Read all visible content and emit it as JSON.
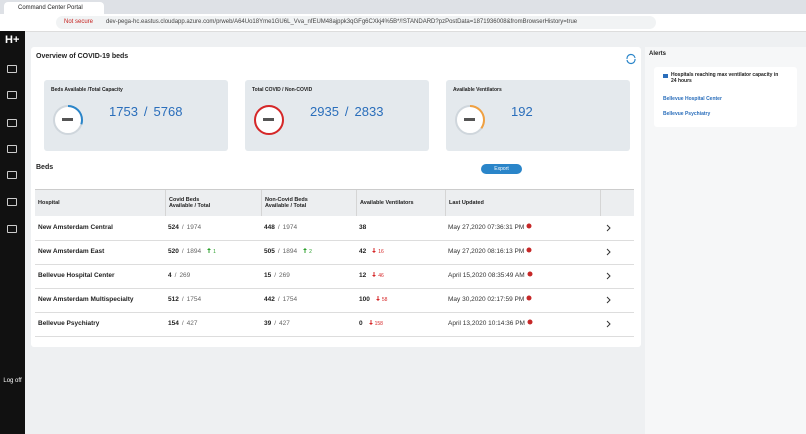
{
  "browser": {
    "tab_title": "Command Center Portal",
    "security_label": "Not secure",
    "url": "dev-pega-hc.eastus.cloudapp.azure.com/prweb/A64Uo18Yme1GU6L_Vva_nfEUM48ajppk3qGFg6CXkj4%5B*/!STANDARD?pzPostData=1871936008&fromBrowserHistory=true"
  },
  "sidebar": {
    "logo": "H+",
    "logout": "Log off"
  },
  "separator": "/",
  "overview": {
    "title": "Overview of COVID-19 beds",
    "cards": [
      {
        "label": "Beds Available /Total Capacity",
        "values": [
          1753,
          5768
        ]
      },
      {
        "label": "Total COVID / Non-COVID",
        "values": [
          2935,
          2833
        ]
      },
      {
        "label": "Available Ventilators",
        "values": [
          192
        ]
      }
    ]
  },
  "beds": {
    "title": "Beds",
    "export": "Export",
    "columns": [
      [
        "Hospital"
      ],
      [
        "Covid Beds",
        "Available / Total"
      ],
      [
        "Non-Covid Beds",
        "Available / Total"
      ],
      [
        "Available Ventilators"
      ],
      [
        "Last Updated"
      ]
    ],
    "rows": [
      {
        "hospital": "New Amsterdam Central",
        "covid": {
          "available": 524,
          "total": 1974,
          "change": null
        },
        "non_covid": {
          "available": 448,
          "total": 1974,
          "change": null
        },
        "ventilators": {
          "value": 38,
          "change": null
        },
        "last_updated": "May 27,2020 07:36:31 PM"
      },
      {
        "hospital": "New Amsterdam East",
        "covid": {
          "available": 520,
          "total": 1894,
          "change": {
            "value": 1,
            "direction": "up"
          }
        },
        "non_covid": {
          "available": 505,
          "total": 1894,
          "change": {
            "value": 2,
            "direction": "up"
          }
        },
        "ventilators": {
          "value": 42,
          "change": {
            "value": 16,
            "direction": "down"
          }
        },
        "last_updated": "May 27,2020 08:16:13 PM"
      },
      {
        "hospital": "Bellevue Hospital Center",
        "covid": {
          "available": 4,
          "total": 269,
          "change": null
        },
        "non_covid": {
          "available": 15,
          "total": 269,
          "change": null
        },
        "ventilators": {
          "value": 12,
          "change": {
            "value": 46,
            "direction": "down"
          }
        },
        "last_updated": "April 15,2020 08:35:49 AM"
      },
      {
        "hospital": "New Amsterdam Multispecialty",
        "covid": {
          "available": 512,
          "total": 1754,
          "change": null
        },
        "non_covid": {
          "available": 442,
          "total": 1754,
          "change": null
        },
        "ventilators": {
          "value": 100,
          "change": {
            "value": 58,
            "direction": "down"
          }
        },
        "last_updated": "May 30,2020 02:17:59 PM"
      },
      {
        "hospital": "Bellevue Psychiatry",
        "covid": {
          "available": 154,
          "total": 427,
          "change": null
        },
        "non_covid": {
          "available": 39,
          "total": 427,
          "change": null
        },
        "ventilators": {
          "value": 0,
          "change": {
            "value": 158,
            "direction": "down"
          }
        },
        "last_updated": "April 13,2020 10:14:36 PM"
      }
    ]
  },
  "alerts": {
    "title": "Alerts",
    "items": [
      {
        "text": "Hospitals reaching max ventilator capacity in 24 hours",
        "links": [
          "Bellevue Hospital Center",
          "Bellevue Psychiatry"
        ]
      }
    ]
  }
}
